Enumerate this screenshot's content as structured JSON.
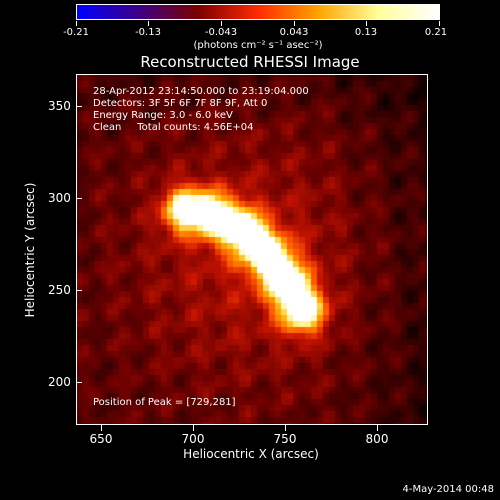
{
  "colorbar": {
    "tick_labels": [
      "-0.21",
      "-0.13",
      "-0.043",
      "0.043",
      "0.13",
      "0.21"
    ],
    "units_label": "(photons cm⁻² s⁻¹ asec⁻²)",
    "range": [
      -0.21,
      0.21
    ],
    "colors": [
      "#0000ff",
      "#3b0088",
      "#7a0000",
      "#ff2a00",
      "#ffa400",
      "#ffff9b",
      "#ffffff"
    ]
  },
  "title": "Reconstructed RHESSI Image",
  "info": {
    "line1": "28-Apr-2012 23:14:50.000 to 23:19:04.000",
    "line2": "Detectors: 3F 5F 6F 7F 8F 9F, Att 0",
    "line3": "Energy Range: 3.0 - 6.0 keV",
    "line4": "Clean     Total counts: 4.56E+04"
  },
  "peak_text": "Position of Peak = [729,281]",
  "x_axis": {
    "title": "Heliocentric X (arcsec)",
    "ticks": [
      "650",
      "700",
      "750",
      "800"
    ],
    "range": [
      637,
      827
    ]
  },
  "y_axis": {
    "title": "Heliocentric Y (arcsec)",
    "ticks": [
      "200",
      "250",
      "300",
      "350"
    ],
    "range": [
      177,
      367
    ]
  },
  "timestamp": "4-May-2014 00:48"
}
